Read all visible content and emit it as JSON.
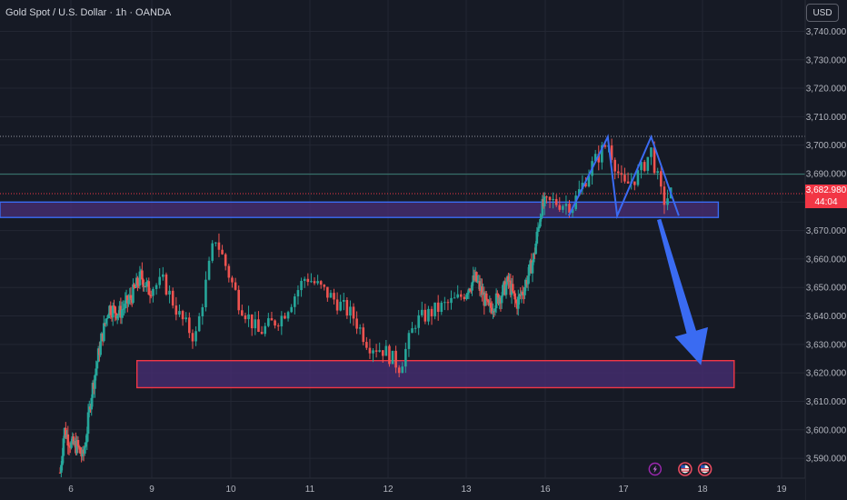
{
  "header": {
    "title": "Gold Spot / U.S. Dollar · 1h · OANDA",
    "currency": "USD"
  },
  "colors": {
    "background": "#161a25",
    "grid": "#232733",
    "bull": "#26a69a",
    "bear": "#ef5350",
    "pattern_blue": "#3a6bf2",
    "zone_fill": "#4a2f77",
    "resistance_border": "#3a6bf2",
    "support_border": "#f23645",
    "price_label": "#f23645"
  },
  "price_label": {
    "price": "3,682.980",
    "countdown": "44:04"
  },
  "chart_data": {
    "type": "candlestick",
    "symbol": "Gold Spot / U.S. Dollar",
    "interval": "1h",
    "source": "OANDA",
    "x_axis": {
      "labels": [
        "6",
        "9",
        "10",
        "11",
        "12",
        "13",
        "16",
        "17",
        "18",
        "19"
      ],
      "domain": [
        5.55,
        19.5
      ]
    },
    "y_axis": {
      "labels": [
        "3,740.000",
        "3,730.000",
        "3,720.000",
        "3,710.000",
        "3,700.000",
        "3,690.000",
        "3,670.000",
        "3,660.000",
        "3,650.000",
        "3,640.000",
        "3,630.000",
        "3,620.000",
        "3,610.000",
        "3,600.000",
        "3,590.000"
      ],
      "ylim": [
        3583,
        3751
      ]
    },
    "current_price": 3682.98,
    "reference_lines": [
      {
        "value": 3703.1,
        "style": "dotted"
      },
      {
        "value": 3689.8,
        "style": "solid"
      },
      {
        "value": 3682.98,
        "style": "dotted"
      }
    ],
    "zones": [
      {
        "name": "resistance",
        "x": [
          5.55,
          18.2
        ],
        "y": [
          3674.6,
          3680.0
        ]
      },
      {
        "name": "support",
        "x": [
          8.45,
          18.4
        ],
        "y": [
          3614.8,
          3624.3
        ]
      }
    ],
    "pattern": {
      "type": "double-top",
      "points": [
        [
          16.3,
          3675.2
        ],
        [
          16.8,
          3702.9
        ],
        [
          16.92,
          3675.2
        ],
        [
          17.35,
          3702.9
        ],
        [
          17.7,
          3675.2
        ]
      ]
    },
    "projection_arrow": {
      "from": [
        17.45,
        3673.9
      ],
      "to": [
        17.98,
        3622.7
      ]
    },
    "event_icons": [
      {
        "name": "lightning-event",
        "x": 17.4
      },
      {
        "name": "us-event",
        "x": 17.78
      },
      {
        "name": "us-event",
        "x": 18.03
      }
    ],
    "ohlc_anchors": [
      [
        5.6,
        3585
      ],
      [
        5.75,
        3600
      ],
      [
        6.0,
        3595
      ],
      [
        6.25,
        3594
      ],
      [
        6.45,
        3590
      ],
      [
        6.6,
        3600
      ],
      [
        6.75,
        3612
      ],
      [
        7.05,
        3628
      ],
      [
        7.4,
        3643
      ],
      [
        7.8,
        3641
      ],
      [
        8.2,
        3646
      ],
      [
        8.6,
        3654
      ],
      [
        8.9,
        3649
      ],
      [
        9.15,
        3652
      ],
      [
        9.35,
        3640
      ],
      [
        9.55,
        3632
      ],
      [
        9.8,
        3668
      ],
      [
        10.1,
        3645
      ],
      [
        10.35,
        3634
      ],
      [
        10.65,
        3640
      ],
      [
        10.95,
        3654
      ],
      [
        11.3,
        3646
      ],
      [
        11.55,
        3640
      ],
      [
        11.75,
        3630
      ],
      [
        11.95,
        3628
      ],
      [
        12.15,
        3622
      ],
      [
        12.35,
        3638
      ],
      [
        12.6,
        3642
      ],
      [
        12.9,
        3646
      ],
      [
        13.05,
        3650
      ],
      [
        13.35,
        3653
      ],
      [
        13.6,
        3648
      ],
      [
        13.85,
        3642
      ],
      [
        14.1,
        3645
      ],
      [
        14.35,
        3648
      ],
      [
        14.6,
        3652
      ],
      [
        14.9,
        3644
      ],
      [
        15.2,
        3650
      ],
      [
        15.55,
        3660
      ],
      [
        15.85,
        3678
      ],
      [
        16.1,
        3680
      ],
      [
        16.35,
        3679
      ],
      [
        16.6,
        3693
      ],
      [
        16.8,
        3701
      ],
      [
        17.0,
        3685
      ],
      [
        17.2,
        3690
      ],
      [
        17.35,
        3698
      ],
      [
        17.5,
        3680
      ],
      [
        17.6,
        3683
      ]
    ]
  }
}
